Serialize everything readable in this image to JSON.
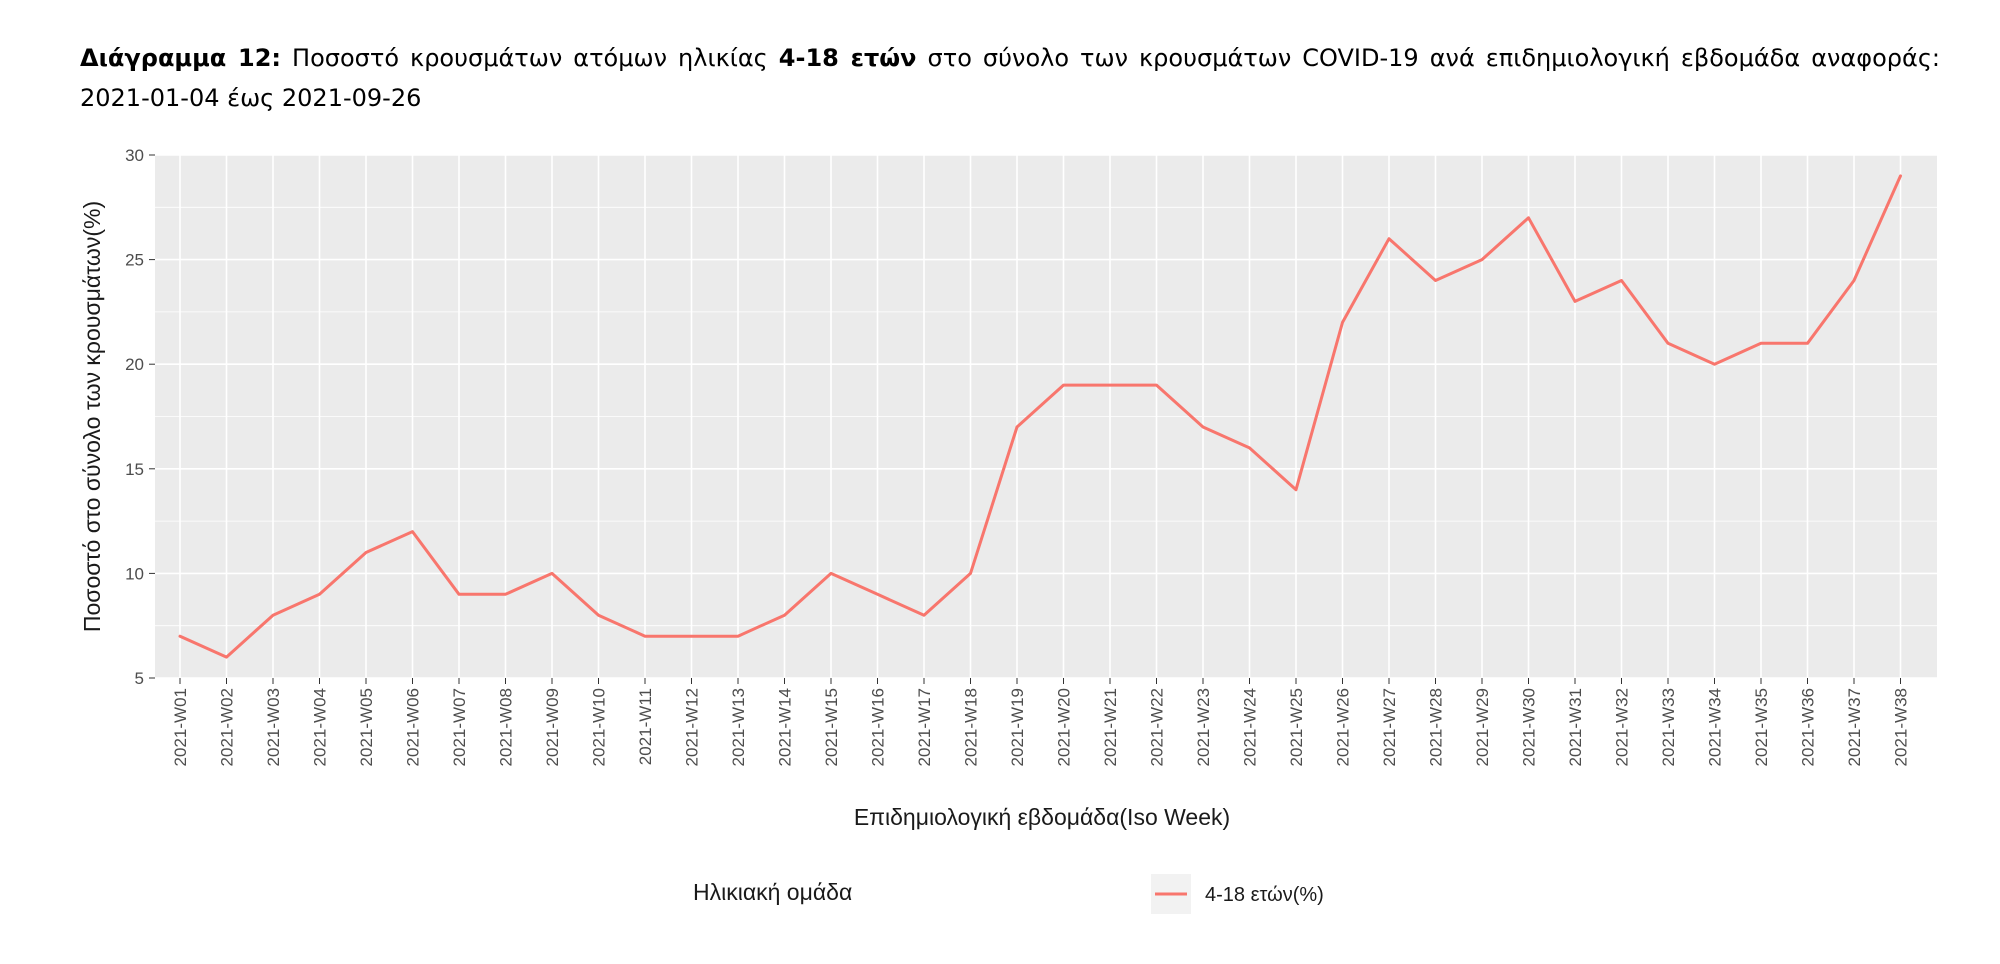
{
  "caption": {
    "label": "Διάγραμμα 12:",
    "text_before": " Ποσοστό κρουσμάτων ατόμων ηλικίας ",
    "bold_group": "4-18 ετών",
    "text_after": " στο σύνολο των κρουσμάτων COVID-19 ανά επιδημιολογική εβδομάδα αναφοράς: 2021-01-04 έως 2021-09-26"
  },
  "colors": {
    "line": "#F8766D",
    "panel": "#EBEBEB",
    "grid": "#FFFFFF"
  },
  "chart_data": {
    "type": "line",
    "title": "",
    "xlabel": "Επιδημιολογική εβδομάδα(Iso Week)",
    "ylabel": "Ποσοστό στο σύνολο των κρουσμάτων(%)",
    "ylim": [
      5,
      30
    ],
    "yticks": [
      5,
      10,
      15,
      20,
      25,
      30
    ],
    "grid": true,
    "legend_title": "Ηλικιακή ομάδα",
    "legend_position": "bottom",
    "categories": [
      "2021-W01",
      "2021-W02",
      "2021-W03",
      "2021-W04",
      "2021-W05",
      "2021-W06",
      "2021-W07",
      "2021-W08",
      "2021-W09",
      "2021-W10",
      "2021-W11",
      "2021-W12",
      "2021-W13",
      "2021-W14",
      "2021-W15",
      "2021-W16",
      "2021-W17",
      "2021-W18",
      "2021-W19",
      "2021-W20",
      "2021-W21",
      "2021-W22",
      "2021-W23",
      "2021-W24",
      "2021-W25",
      "2021-W26",
      "2021-W27",
      "2021-W28",
      "2021-W29",
      "2021-W30",
      "2021-W31",
      "2021-W32",
      "2021-W33",
      "2021-W34",
      "2021-W35",
      "2021-W36",
      "2021-W37",
      "2021-W38"
    ],
    "series": [
      {
        "name": "4-18 ετών(%)",
        "values": [
          7,
          6,
          8,
          9,
          11,
          12,
          9,
          9,
          10,
          8,
          7,
          7,
          7,
          8,
          10,
          9,
          8,
          10,
          17,
          19,
          19,
          19,
          17,
          16,
          14,
          22,
          26,
          24,
          25,
          27,
          23,
          24,
          21,
          20,
          21,
          21,
          24,
          29
        ]
      }
    ]
  }
}
